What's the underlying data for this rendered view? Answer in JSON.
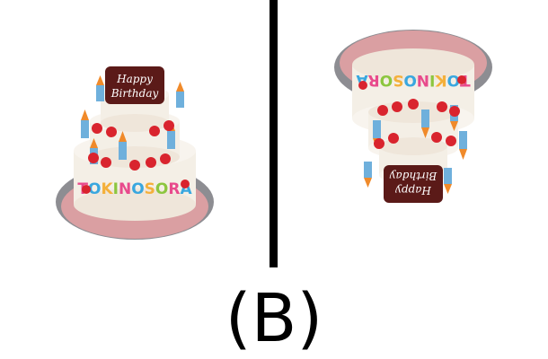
{
  "caption": "(B)",
  "cake": {
    "plaque_text": [
      "Happy",
      "Birthday"
    ],
    "band_text": "TOKINOSORA",
    "band_letter_colors": [
      "#e84a8c",
      "#39a7df",
      "#f4b03b",
      "#8cc63f",
      "#e84a8c",
      "#39a7df",
      "#f4b03b",
      "#8cc63f",
      "#e84a8c",
      "#39a7df"
    ]
  },
  "colors": {
    "cream": "#f4efe6",
    "strawberry": "#d9242e",
    "plaque": "#5b1a18",
    "skirt": "#e8a2a4",
    "plate": "#8d8d92",
    "candle_blue": "#6fb0dc",
    "flame": "#f08a2a"
  }
}
